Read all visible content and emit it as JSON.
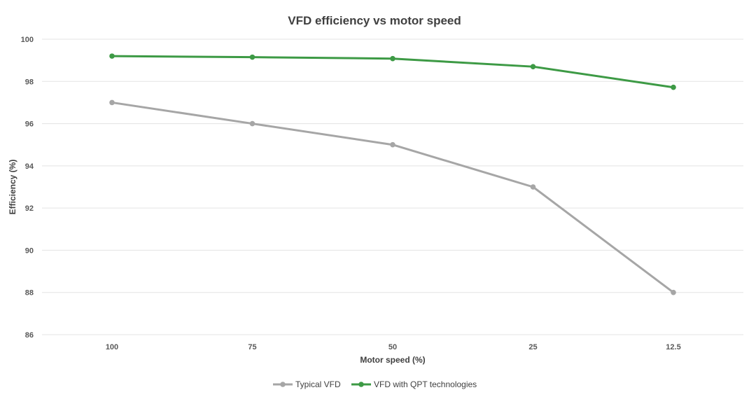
{
  "chart_data": {
    "type": "line",
    "title": "VFD efficiency vs motor speed",
    "xlabel": "Motor speed (%)",
    "ylabel": "Efficiency (%)",
    "categories": [
      "100",
      "75",
      "50",
      "25",
      "12.5"
    ],
    "ylim": [
      86,
      100
    ],
    "yticks": [
      86,
      88,
      90,
      92,
      94,
      96,
      98,
      100
    ],
    "grid": true,
    "legend_position": "bottom",
    "series": [
      {
        "name": "Typical VFD",
        "color": "#a6a6a6",
        "values": [
          97,
          96,
          95,
          93,
          88
        ]
      },
      {
        "name": "VFD with QPT technologies",
        "color": "#3d9a45",
        "values": [
          99.2,
          99.15,
          99.08,
          98.7,
          97.72
        ]
      }
    ]
  }
}
